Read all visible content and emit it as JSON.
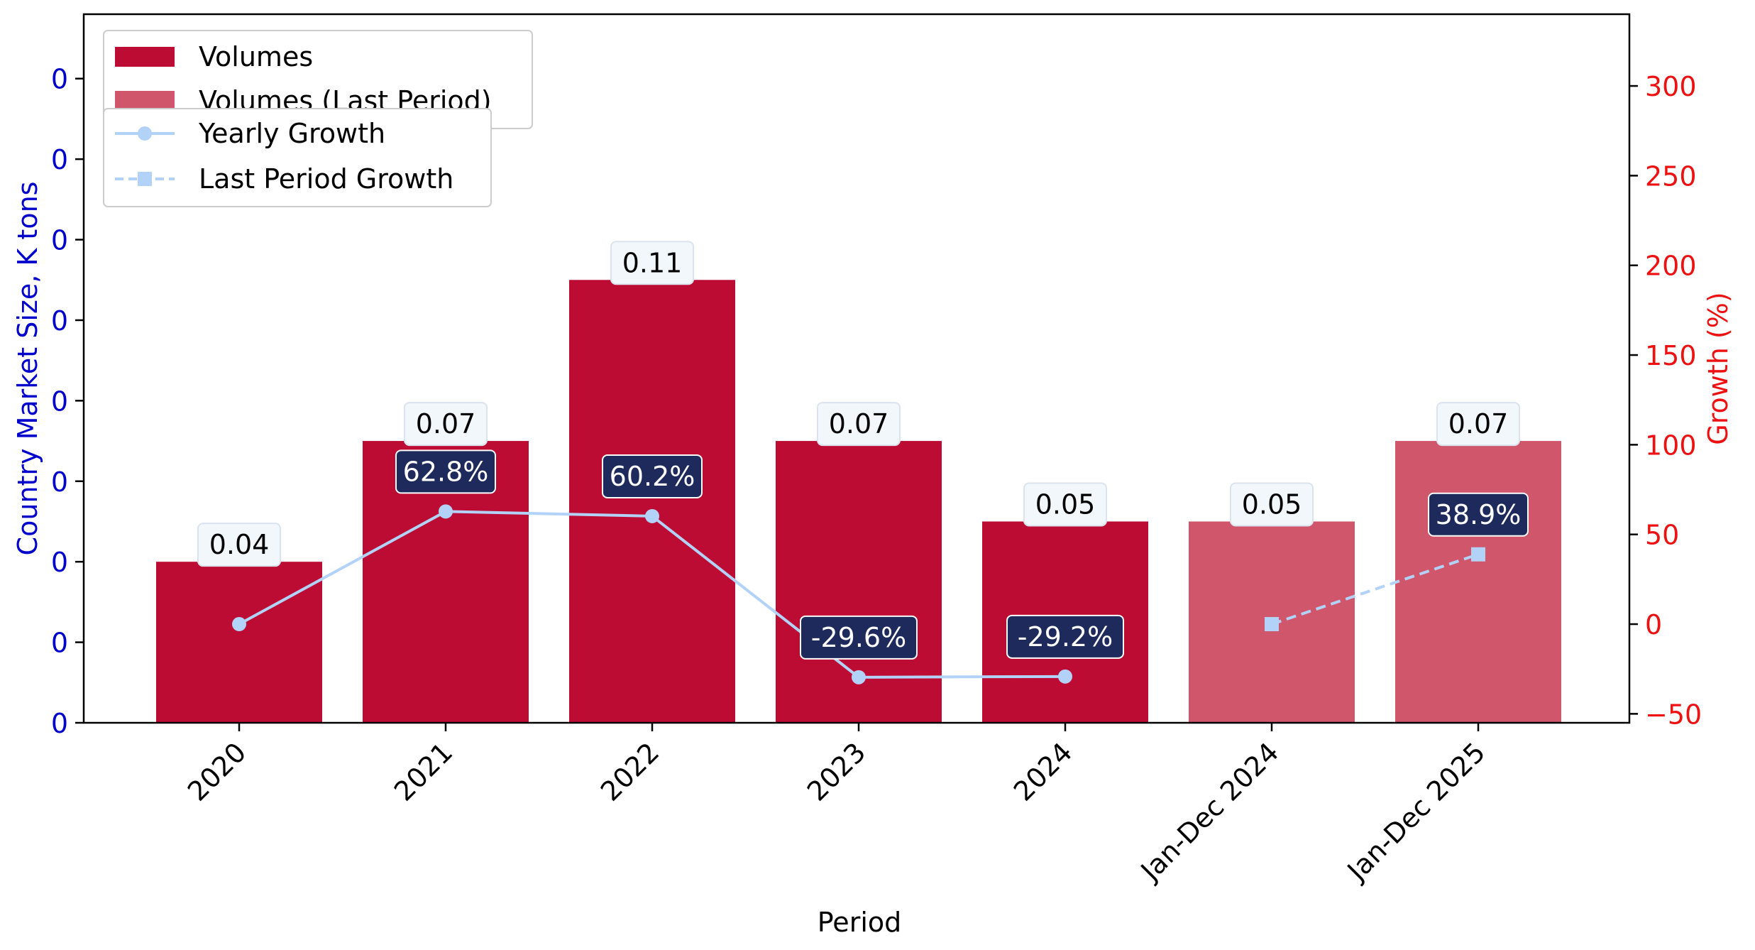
{
  "chart_data": {
    "type": "bar",
    "xlabel": "Period",
    "ylabel_left": "Country Market Size, K tons",
    "ylabel_right": "Growth (%)",
    "categories": [
      "2020",
      "2021",
      "2022",
      "2023",
      "2024",
      "Jan-Dec 2024",
      "Jan-Dec 2025"
    ],
    "left_axis": {
      "ylim": [
        0,
        0.176
      ],
      "ticks": [
        0,
        0.02,
        0.04,
        0.06,
        0.08,
        0.1,
        0.12,
        0.14,
        0.16
      ],
      "tick_labels": [
        "0",
        "0",
        "0",
        "0",
        "0",
        "0",
        "0",
        "0",
        "0"
      ],
      "color": "#0000cc"
    },
    "right_axis": {
      "ylim": [
        -55,
        340
      ],
      "ticks": [
        -50,
        0,
        50,
        100,
        150,
        200,
        250,
        300
      ],
      "tick_labels": [
        "−50",
        "0",
        "50",
        "100",
        "150",
        "200",
        "250",
        "300"
      ],
      "color": "#ee1111"
    },
    "series": [
      {
        "name": "Volumes",
        "kind": "bar",
        "color": "#bc0c33",
        "values": [
          0.04,
          0.07,
          0.11,
          0.07,
          0.05,
          null,
          null
        ],
        "labels": [
          "0.04",
          "0.07",
          "0.11",
          "0.07",
          "0.05",
          "",
          ""
        ]
      },
      {
        "name": "Volumes (Last Period)",
        "kind": "bar",
        "color": "#d0566c",
        "values": [
          null,
          null,
          null,
          null,
          null,
          0.05,
          0.07
        ],
        "labels": [
          "",
          "",
          "",
          "",
          "",
          "0.05",
          "0.07"
        ]
      },
      {
        "name": "Yearly Growth",
        "kind": "line",
        "style": "solid",
        "marker": "circle",
        "color": "#b3d2f7",
        "values": [
          0,
          62.8,
          60.2,
          -29.6,
          -29.2,
          null,
          null
        ],
        "labels": [
          "",
          "62.8%",
          "60.2%",
          "-29.6%",
          "-29.2%",
          "",
          ""
        ]
      },
      {
        "name": "Last Period Growth",
        "kind": "line",
        "style": "dashed",
        "marker": "square",
        "color": "#b3d2f7",
        "values": [
          null,
          null,
          null,
          null,
          null,
          0,
          38.9
        ],
        "labels": [
          "",
          "",
          "",
          "",
          "",
          "",
          "38.9%"
        ]
      }
    ],
    "legend_placement": "top-left",
    "grid": false,
    "label_box_color": "#1f2a5c",
    "value_box_color": "#f2f7fc"
  }
}
